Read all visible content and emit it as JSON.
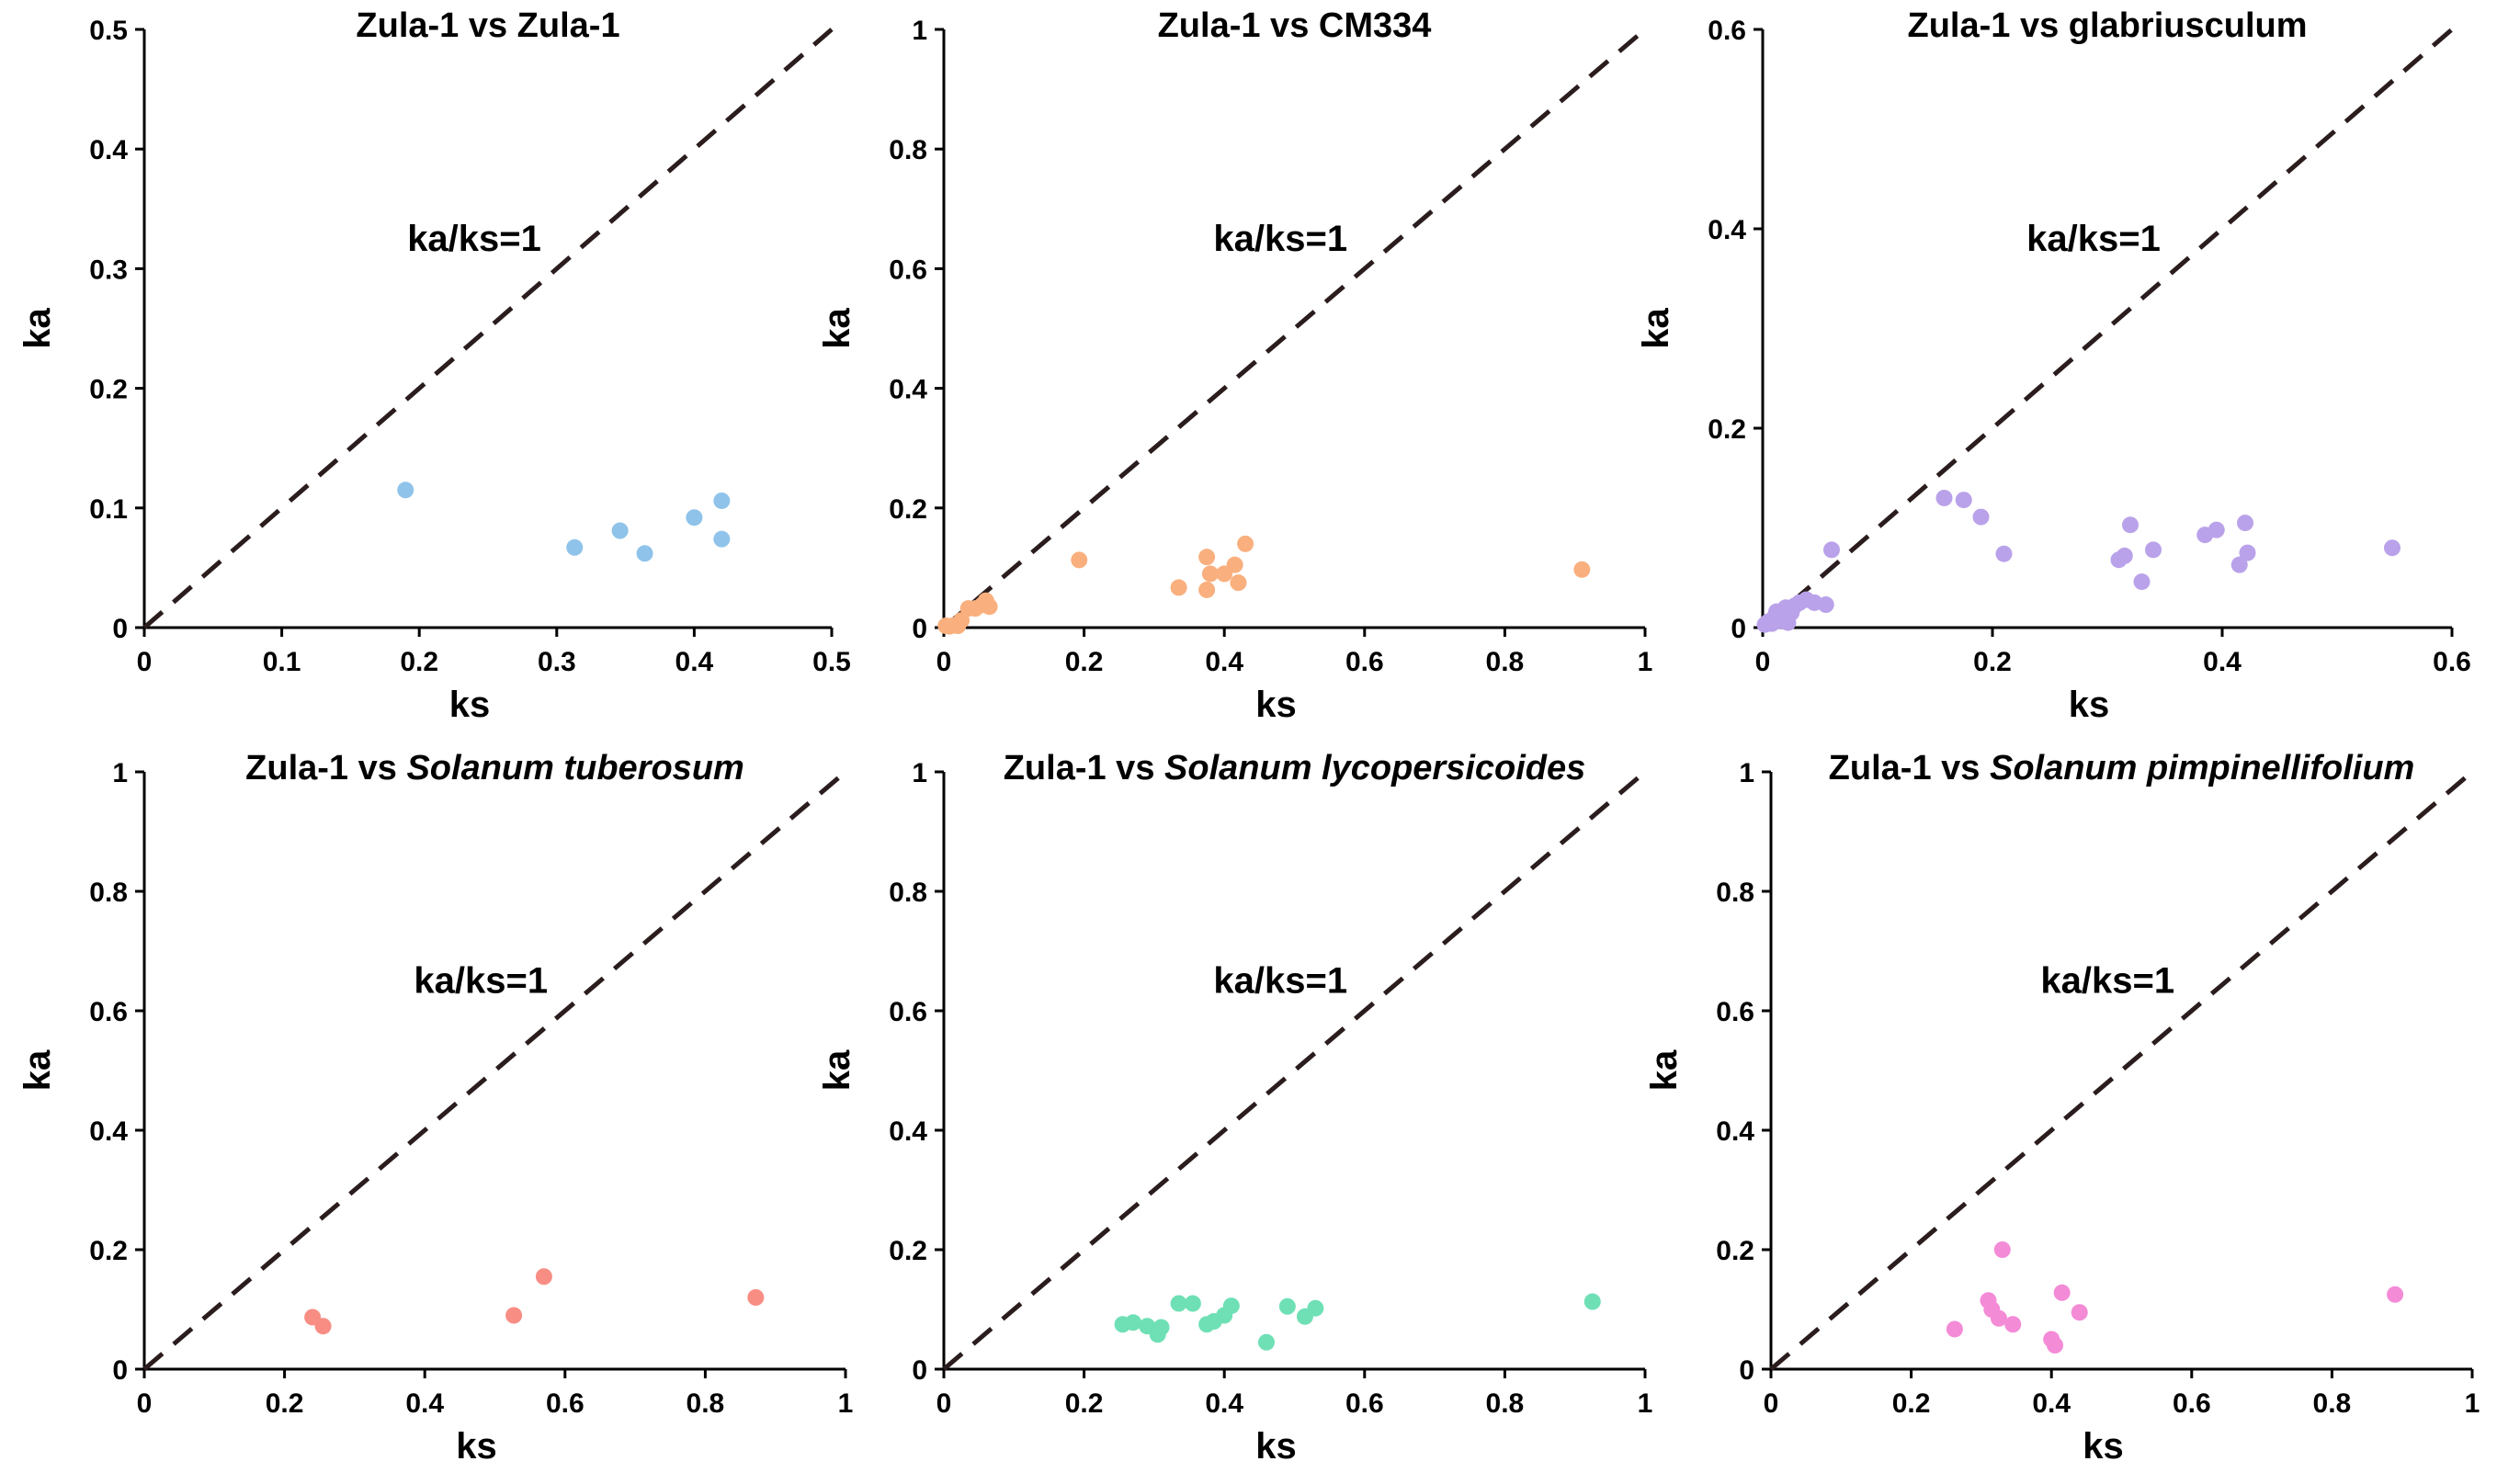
{
  "chart_data": [
    {
      "type": "scatter",
      "title_plain": "Zula-1 vs Zula-1",
      "title_italic": "",
      "xlabel": "ks",
      "ylabel": "ka",
      "xlim": [
        0,
        0.5
      ],
      "ylim": [
        0,
        0.5
      ],
      "xticks": [
        0,
        0.1,
        0.2,
        0.3,
        0.4,
        0.5
      ],
      "yticks": [
        0,
        0.1,
        0.2,
        0.3,
        0.4,
        0.5
      ],
      "xtick_labels": [
        "0",
        "0.1",
        "0.2",
        "0.3",
        "0.4",
        "0.5"
      ],
      "ytick_labels": [
        "0",
        "0.1",
        "0.2",
        "0.3",
        "0.4",
        "0.5"
      ],
      "annotation": "ka/ks=1",
      "color": "#8fc3ea",
      "points": [
        [
          0.19,
          0.115
        ],
        [
          0.313,
          0.067
        ],
        [
          0.346,
          0.081
        ],
        [
          0.364,
          0.062
        ],
        [
          0.4,
          0.092
        ],
        [
          0.42,
          0.106
        ],
        [
          0.42,
          0.074
        ]
      ]
    },
    {
      "type": "scatter",
      "title_plain": "Zula-1 vs CM334",
      "title_italic": "",
      "xlabel": "ks",
      "ylabel": "ka",
      "xlim": [
        0,
        1
      ],
      "ylim": [
        0,
        1
      ],
      "xticks": [
        0,
        0.2,
        0.4,
        0.6,
        0.8,
        1
      ],
      "yticks": [
        0,
        0.2,
        0.4,
        0.6,
        0.8,
        1
      ],
      "xtick_labels": [
        "0",
        "0.2",
        "0.4",
        "0.6",
        "0.8",
        "1"
      ],
      "ytick_labels": [
        "0",
        "0.2",
        "0.4",
        "0.6",
        "0.8",
        "1"
      ],
      "annotation": "ka/ks=1",
      "color": "#f9b07e",
      "points": [
        [
          0.003,
          0.003
        ],
        [
          0.008,
          0.002
        ],
        [
          0.015,
          0.004
        ],
        [
          0.02,
          0.003
        ],
        [
          0.025,
          0.012
        ],
        [
          0.035,
          0.032
        ],
        [
          0.045,
          0.032
        ],
        [
          0.055,
          0.038
        ],
        [
          0.06,
          0.045
        ],
        [
          0.065,
          0.035
        ],
        [
          0.193,
          0.113
        ],
        [
          0.335,
          0.067
        ],
        [
          0.375,
          0.118
        ],
        [
          0.375,
          0.063
        ],
        [
          0.38,
          0.09
        ],
        [
          0.4,
          0.09
        ],
        [
          0.415,
          0.105
        ],
        [
          0.42,
          0.075
        ],
        [
          0.43,
          0.14
        ],
        [
          0.91,
          0.097
        ]
      ]
    },
    {
      "type": "scatter",
      "title_plain": "Zula-1 vs glabriusculum",
      "title_italic": "",
      "xlabel": "ks",
      "ylabel": "ka",
      "xlim": [
        0,
        0.6
      ],
      "ylim": [
        0,
        0.6
      ],
      "xticks": [
        0,
        0.2,
        0.4,
        0.6
      ],
      "yticks": [
        0,
        0.2,
        0.4,
        0.6
      ],
      "xtick_labels": [
        "0",
        "0.2",
        "0.4",
        "0.6"
      ],
      "ytick_labels": [
        "0",
        "0.2",
        "0.4",
        "0.6"
      ],
      "annotation": "ka/ks=1",
      "color": "#b9a2ea",
      "points": [
        [
          0.002,
          0.003
        ],
        [
          0.005,
          0.006
        ],
        [
          0.008,
          0.004
        ],
        [
          0.01,
          0.01
        ],
        [
          0.012,
          0.016
        ],
        [
          0.015,
          0.007
        ],
        [
          0.018,
          0.012
        ],
        [
          0.02,
          0.02
        ],
        [
          0.022,
          0.005
        ],
        [
          0.025,
          0.015
        ],
        [
          0.028,
          0.022
        ],
        [
          0.032,
          0.025
        ],
        [
          0.038,
          0.028
        ],
        [
          0.045,
          0.025
        ],
        [
          0.055,
          0.023
        ],
        [
          0.06,
          0.078
        ],
        [
          0.158,
          0.13
        ],
        [
          0.175,
          0.128
        ],
        [
          0.19,
          0.111
        ],
        [
          0.21,
          0.074
        ],
        [
          0.31,
          0.068
        ],
        [
          0.315,
          0.072
        ],
        [
          0.32,
          0.103
        ],
        [
          0.33,
          0.046
        ],
        [
          0.34,
          0.078
        ],
        [
          0.385,
          0.093
        ],
        [
          0.395,
          0.098
        ],
        [
          0.415,
          0.063
        ],
        [
          0.42,
          0.105
        ],
        [
          0.422,
          0.075
        ],
        [
          0.548,
          0.08
        ]
      ]
    },
    {
      "type": "scatter",
      "title_plain": "Zula-1 vs ",
      "title_italic": "Solanum tuberosum",
      "xlabel": "ks",
      "ylabel": "ka",
      "xlim": [
        0,
        1
      ],
      "ylim": [
        0,
        1
      ],
      "xticks": [
        0,
        0.2,
        0.4,
        0.6,
        0.8,
        1
      ],
      "yticks": [
        0,
        0.2,
        0.4,
        0.6,
        0.8,
        1
      ],
      "xtick_labels": [
        "0",
        "0.2",
        "0.4",
        "0.6",
        "0.8",
        "1"
      ],
      "ytick_labels": [
        "0",
        "0.2",
        "0.4",
        "0.6",
        "0.8",
        "1"
      ],
      "annotation": "ka/ks=1",
      "color": "#f88d84",
      "points": [
        [
          0.24,
          0.087
        ],
        [
          0.255,
          0.072
        ],
        [
          0.527,
          0.09
        ],
        [
          0.57,
          0.155
        ],
        [
          0.872,
          0.12
        ]
      ]
    },
    {
      "type": "scatter",
      "title_plain": "Zula-1 vs ",
      "title_italic": "Solanum lycopersicoides",
      "xlabel": "ks",
      "ylabel": "ka",
      "xlim": [
        0,
        1
      ],
      "ylim": [
        0,
        1
      ],
      "xticks": [
        0,
        0.2,
        0.4,
        0.6,
        0.8,
        1
      ],
      "yticks": [
        0,
        0.2,
        0.4,
        0.6,
        0.8,
        1
      ],
      "xtick_labels": [
        "0",
        "0.2",
        "0.4",
        "0.6",
        "0.8",
        "1"
      ],
      "ytick_labels": [
        "0",
        "0.2",
        "0.4",
        "0.6",
        "0.8",
        "1"
      ],
      "annotation": "ka/ks=1",
      "color": "#6fe0b6",
      "points": [
        [
          0.255,
          0.075
        ],
        [
          0.27,
          0.078
        ],
        [
          0.29,
          0.072
        ],
        [
          0.305,
          0.058
        ],
        [
          0.31,
          0.07
        ],
        [
          0.335,
          0.11
        ],
        [
          0.355,
          0.11
        ],
        [
          0.375,
          0.075
        ],
        [
          0.385,
          0.08
        ],
        [
          0.4,
          0.09
        ],
        [
          0.41,
          0.106
        ],
        [
          0.46,
          0.045
        ],
        [
          0.49,
          0.105
        ],
        [
          0.515,
          0.088
        ],
        [
          0.53,
          0.102
        ],
        [
          0.925,
          0.113
        ]
      ]
    },
    {
      "type": "scatter",
      "title_plain": "Zula-1 vs ",
      "title_italic": "Solanum pimpinellifolium",
      "xlabel": "ks",
      "ylabel": "ka",
      "xlim": [
        0,
        1
      ],
      "ylim": [
        0,
        1
      ],
      "xticks": [
        0,
        0.2,
        0.4,
        0.6,
        0.8,
        1
      ],
      "yticks": [
        0,
        0.2,
        0.4,
        0.6,
        0.8,
        1
      ],
      "xtick_labels": [
        "0",
        "0.2",
        "0.4",
        "0.6",
        "0.8",
        "1"
      ],
      "ytick_labels": [
        "0",
        "0.2",
        "0.4",
        "0.6",
        "0.8",
        "1"
      ],
      "annotation": "ka/ks=1",
      "color": "#f48bd6",
      "points": [
        [
          0.262,
          0.067
        ],
        [
          0.31,
          0.115
        ],
        [
          0.315,
          0.1
        ],
        [
          0.325,
          0.085
        ],
        [
          0.33,
          0.2
        ],
        [
          0.345,
          0.075
        ],
        [
          0.4,
          0.05
        ],
        [
          0.405,
          0.04
        ],
        [
          0.415,
          0.128
        ],
        [
          0.44,
          0.095
        ],
        [
          0.89,
          0.125
        ]
      ]
    }
  ]
}
